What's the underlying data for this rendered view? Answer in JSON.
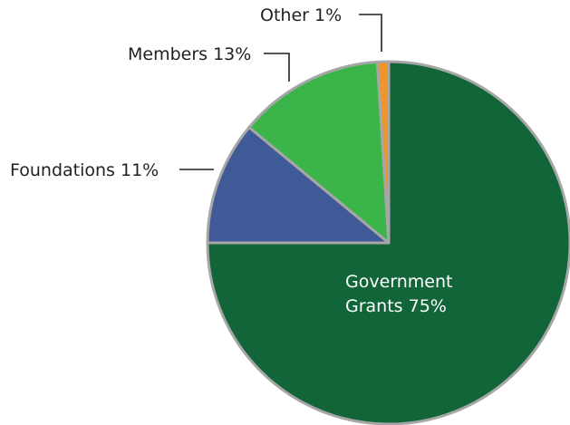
{
  "chart_data": {
    "type": "pie",
    "start": "top, clockwise",
    "slices": [
      {
        "key": "government",
        "label_line1": "Government",
        "label_line2": "Grants 75%",
        "value": 75,
        "color": "#116538"
      },
      {
        "key": "foundations",
        "label": "Foundations 11%",
        "value": 11,
        "color": "#3f5a96"
      },
      {
        "key": "members",
        "label": "Members 13%",
        "value": 13,
        "color": "#3bb54a"
      },
      {
        "key": "other",
        "label": "Other 1%",
        "value": 1,
        "color": "#f0952b"
      }
    ],
    "slice_border_color": "#a6a6a6"
  }
}
